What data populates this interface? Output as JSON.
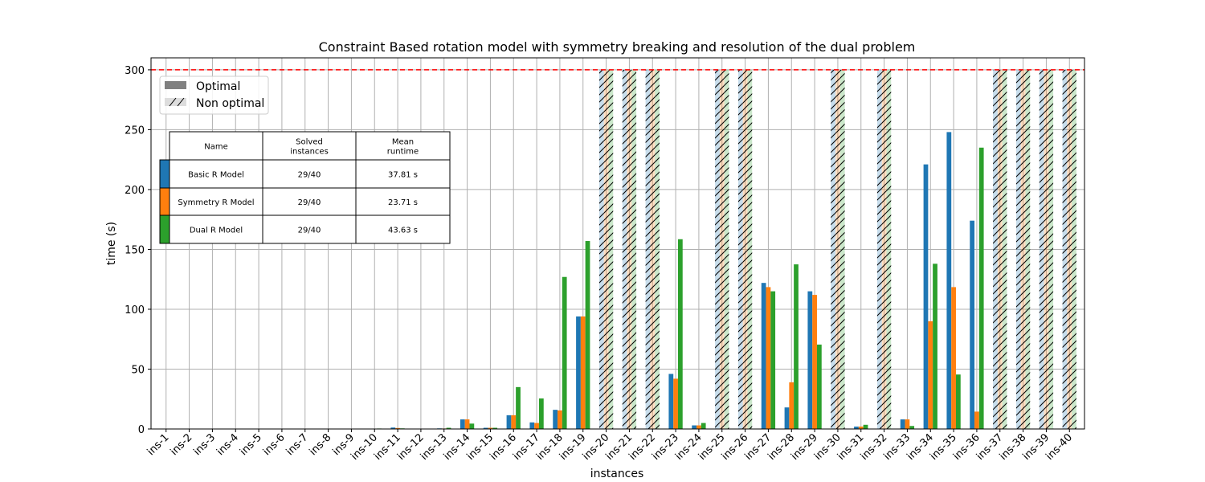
{
  "chart_data": {
    "type": "bar",
    "title": "Constraint Based rotation model with symmetry breaking and resolution of the dual problem",
    "xlabel": "instances",
    "ylabel": "time (s)",
    "ylim": [
      0,
      310
    ],
    "yticks": [
      0,
      50,
      100,
      150,
      200,
      250,
      300
    ],
    "grid": true,
    "timeout": 300,
    "timeout_line_color": "#ff0000",
    "categories": [
      "ins-1",
      "ins-2",
      "ins-3",
      "ins-4",
      "ins-5",
      "ins-6",
      "ins-7",
      "ins-8",
      "ins-9",
      "ins-10",
      "ins-11",
      "ins-12",
      "ins-13",
      "ins-14",
      "ins-15",
      "ins-16",
      "ins-17",
      "ins-18",
      "ins-19",
      "ins-20",
      "ins-21",
      "ins-22",
      "ins-23",
      "ins-24",
      "ins-25",
      "ins-26",
      "ins-27",
      "ins-28",
      "ins-29",
      "ins-30",
      "ins-31",
      "ins-32",
      "ins-33",
      "ins-34",
      "ins-35",
      "ins-36",
      "ins-37",
      "ins-38",
      "ins-39",
      "ins-40"
    ],
    "series": [
      {
        "name": "Basic R Model",
        "color": "#1f77b4",
        "values": [
          0.05,
          0.05,
          0.05,
          0.05,
          0.05,
          0.05,
          0.05,
          0.05,
          0.05,
          0.3,
          1.2,
          0.1,
          0.5,
          8,
          1,
          11.5,
          5.5,
          16,
          94,
          300,
          300,
          300,
          46,
          3,
          300,
          300,
          122,
          18,
          115,
          300,
          2,
          300,
          8,
          221,
          248,
          174,
          300,
          300,
          300,
          300
        ],
        "optimal": [
          true,
          true,
          true,
          true,
          true,
          true,
          true,
          true,
          true,
          true,
          true,
          true,
          true,
          true,
          true,
          true,
          true,
          true,
          true,
          false,
          false,
          false,
          true,
          true,
          false,
          false,
          true,
          true,
          true,
          false,
          true,
          false,
          true,
          true,
          true,
          true,
          false,
          false,
          false,
          false
        ]
      },
      {
        "name": "Symmetry R Model",
        "color": "#ff7f0e",
        "values": [
          0.05,
          0.05,
          0.05,
          0.05,
          0.05,
          0.05,
          0.05,
          0.05,
          0.05,
          0.2,
          0.8,
          0.1,
          0.4,
          8,
          1,
          11.5,
          5,
          15.5,
          94,
          300,
          300,
          300,
          42,
          3,
          300,
          300,
          118.5,
          39,
          112,
          300,
          2,
          300,
          8,
          90,
          118.5,
          14.5,
          300,
          300,
          300,
          300
        ],
        "optimal": [
          true,
          true,
          true,
          true,
          true,
          true,
          true,
          true,
          true,
          true,
          true,
          true,
          true,
          true,
          true,
          true,
          true,
          true,
          true,
          false,
          false,
          false,
          true,
          true,
          false,
          false,
          true,
          true,
          true,
          false,
          true,
          false,
          true,
          true,
          true,
          true,
          false,
          false,
          false,
          false
        ]
      },
      {
        "name": "Dual R Model",
        "color": "#2ca02c",
        "values": [
          0.05,
          0.05,
          0.05,
          0.05,
          0.05,
          0.05,
          0.05,
          0.05,
          0.05,
          0.4,
          0.5,
          0.2,
          1,
          4.5,
          1,
          35,
          25.5,
          127,
          157,
          300,
          300,
          300,
          158.5,
          5,
          300,
          300,
          115,
          137.5,
          70.5,
          300,
          3.5,
          300,
          2.5,
          138,
          45.5,
          235,
          300,
          300,
          300,
          300
        ],
        "optimal": [
          true,
          true,
          true,
          true,
          true,
          true,
          true,
          true,
          true,
          true,
          true,
          true,
          true,
          true,
          true,
          true,
          true,
          true,
          true,
          false,
          false,
          false,
          true,
          true,
          false,
          false,
          true,
          true,
          true,
          false,
          true,
          false,
          true,
          true,
          true,
          true,
          false,
          false,
          false,
          false
        ]
      }
    ],
    "legend": {
      "placement": "upper-left",
      "items": [
        {
          "label": "Optimal",
          "style": "solid",
          "color": "#808080"
        },
        {
          "label": "Non optimal",
          "style": "hatched",
          "color": "#dddddd"
        }
      ]
    },
    "summary_table": {
      "headers": [
        "Name",
        "Solved\ninstances",
        "Mean\nruntime"
      ],
      "rows": [
        {
          "color": "#1f77b4",
          "cells": [
            "Basic R Model",
            "29/40",
            "37.81 s"
          ]
        },
        {
          "color": "#ff7f0e",
          "cells": [
            "Symmetry R Model",
            "29/40",
            "23.71 s"
          ]
        },
        {
          "color": "#2ca02c",
          "cells": [
            "Dual R Model",
            "29/40",
            "43.63 s"
          ]
        }
      ]
    }
  }
}
